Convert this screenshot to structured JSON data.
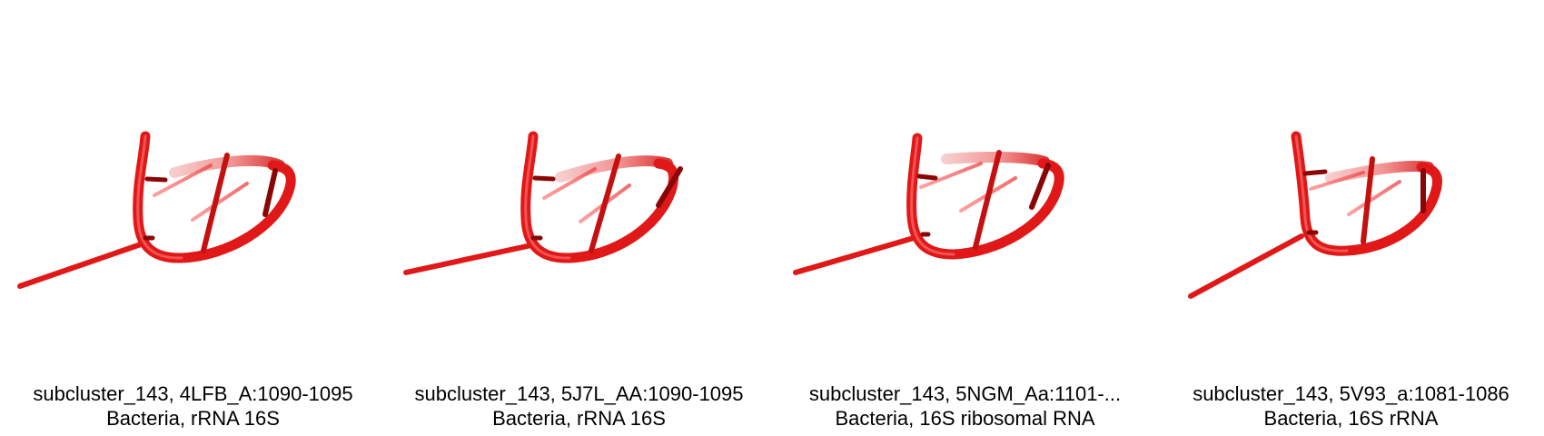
{
  "colors": {
    "strand": "#e01818",
    "strand_dark": "#8a0606",
    "highlight": "#ff7b7b",
    "background": "#ffffff"
  },
  "panels": [
    {
      "title": "subcluster_143, 4LFB_A:1090-1095",
      "subtitle": "Bacteria, rRNA 16S",
      "icon": "rna-hairpin-3d-render"
    },
    {
      "title": "subcluster_143, 5J7L_AA:1090-1095",
      "subtitle": "Bacteria, rRNA 16S",
      "icon": "rna-hairpin-3d-render"
    },
    {
      "title": "subcluster_143, 5NGM_Aa:1101-...",
      "subtitle": "Bacteria, 16S ribosomal RNA",
      "icon": "rna-hairpin-3d-render"
    },
    {
      "title": "subcluster_143, 5V93_a:1081-1086",
      "subtitle": "Bacteria, 16S rRNA",
      "icon": "rna-hairpin-3d-render"
    }
  ]
}
